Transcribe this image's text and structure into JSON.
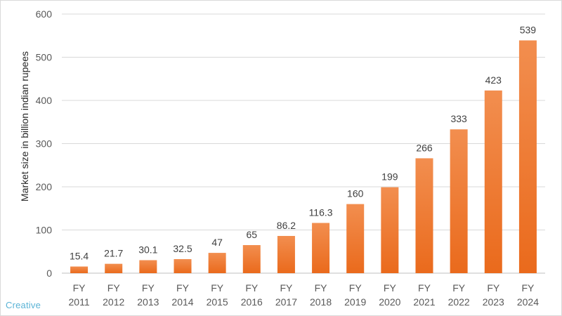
{
  "chart_data": {
    "type": "bar",
    "categories": [
      "FY 2011",
      "FY 2012",
      "FY 2013",
      "FY 2014",
      "FY 2015",
      "FY 2016",
      "FY 2017",
      "FY 2018",
      "FY 2019",
      "FY 2020",
      "FY 2021",
      "FY 2022",
      "FY 2023",
      "FY 2024"
    ],
    "category_lines": [
      [
        "FY",
        "2011"
      ],
      [
        "FY",
        "2012"
      ],
      [
        "FY",
        "2013"
      ],
      [
        "FY",
        "2014"
      ],
      [
        "FY",
        "2015"
      ],
      [
        "FY",
        "2016"
      ],
      [
        "FY",
        "2017"
      ],
      [
        "FY",
        "2018"
      ],
      [
        "FY",
        "2019"
      ],
      [
        "FY",
        "2020"
      ],
      [
        "FY",
        "2021"
      ],
      [
        "FY",
        "2022"
      ],
      [
        "FY",
        "2023"
      ],
      [
        "FY",
        "2024"
      ]
    ],
    "values": [
      15.4,
      21.7,
      30.1,
      32.5,
      47,
      65,
      86.2,
      116.3,
      160,
      199,
      266,
      333,
      423,
      539
    ],
    "data_labels": [
      "15.4",
      "21.7",
      "30.1",
      "32.5",
      "47",
      "65",
      "86.2",
      "116.3",
      "160",
      "199",
      "266",
      "333",
      "423",
      "539"
    ],
    "ylabel": "Market size in billion indian rupees",
    "xlabel": "",
    "ylim": [
      0,
      600
    ],
    "yticks": [
      0,
      100,
      200,
      300,
      400,
      500,
      600
    ],
    "grid": true,
    "bar_color_top": "#f28e4f",
    "bar_color_bottom": "#ea6a1c"
  },
  "watermark": "Creative"
}
